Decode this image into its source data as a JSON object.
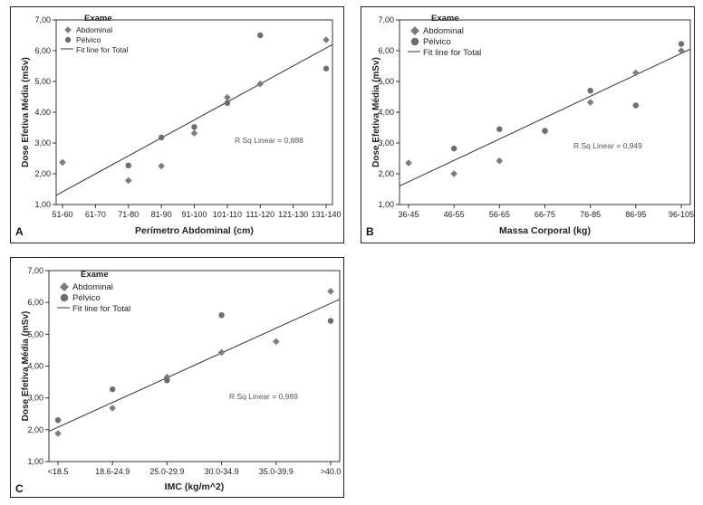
{
  "panels": [
    {
      "letter": "A",
      "legend_title": "Exame",
      "legend": {
        "abdominal": "Abdominal",
        "pelvico": "Pélvico",
        "fit": "Fit line for Total"
      },
      "r2_text": "R Sq Linear = 0,888",
      "chart_data": {
        "type": "scatter",
        "xlabel": "Perímetro Abdominal (cm)",
        "ylabel": "Dose Efetiva Média (mSv)",
        "categories": [
          "51-60",
          "61-70",
          "71-80",
          "81-90",
          "91-100",
          "101-110",
          "111-120",
          "121-130",
          "131-140"
        ],
        "yticks": [
          "1,00",
          "2,00",
          "3,00",
          "4,00",
          "5,00",
          "6,00",
          "7,00"
        ],
        "ylim": [
          1,
          7
        ],
        "series": [
          {
            "name": "Abdominal",
            "marker": "diamond",
            "points": [
              {
                "x": "51-60",
                "y": 2.37
              },
              {
                "x": "71-80",
                "y": 1.78
              },
              {
                "x": "81-90",
                "y": 2.25
              },
              {
                "x": "91-100",
                "y": 3.32
              },
              {
                "x": "101-110",
                "y": 4.48
              },
              {
                "x": "111-120",
                "y": 4.92
              },
              {
                "x": "131-140",
                "y": 6.35
              }
            ]
          },
          {
            "name": "Pélvico",
            "marker": "circle",
            "points": [
              {
                "x": "71-80",
                "y": 2.27
              },
              {
                "x": "81-90",
                "y": 3.18
              },
              {
                "x": "91-100",
                "y": 3.52
              },
              {
                "x": "101-110",
                "y": 4.3
              },
              {
                "x": "111-120",
                "y": 6.5
              },
              {
                "x": "131-140",
                "y": 5.42
              }
            ]
          }
        ],
        "fit_line": {
          "y_start": 1.3,
          "y_end": 6.2
        },
        "r_squared": 0.888
      }
    },
    {
      "letter": "B",
      "legend_title": "Exame",
      "legend": {
        "abdominal": "Abdominal",
        "pelvico": "Pélvico",
        "fit": "Fit line for Total"
      },
      "r2_text": "R Sq Linear = 0,949",
      "chart_data": {
        "type": "scatter",
        "xlabel": "Massa Corporal (kg)",
        "ylabel": "Dose Efetiva Média (mSv)",
        "categories": [
          "36-45",
          "46-55",
          "56-65",
          "66-75",
          "76-85",
          "86-95",
          "96-105"
        ],
        "yticks": [
          "1,00",
          "2,00",
          "3,00",
          "4,00",
          "5,00",
          "6,00",
          "7,00"
        ],
        "ylim": [
          1,
          7
        ],
        "series": [
          {
            "name": "Abdominal",
            "marker": "diamond",
            "points": [
              {
                "x": "36-45",
                "y": 2.35
              },
              {
                "x": "46-55",
                "y": 2.0
              },
              {
                "x": "56-65",
                "y": 2.42
              },
              {
                "x": "66-75",
                "y": 3.38
              },
              {
                "x": "76-85",
                "y": 4.32
              },
              {
                "x": "86-95",
                "y": 5.28
              },
              {
                "x": "96-105",
                "y": 6.0
              }
            ]
          },
          {
            "name": "Pélvico",
            "marker": "circle",
            "points": [
              {
                "x": "46-55",
                "y": 2.82
              },
              {
                "x": "56-65",
                "y": 3.45
              },
              {
                "x": "66-75",
                "y": 3.4
              },
              {
                "x": "76-85",
                "y": 4.7
              },
              {
                "x": "86-95",
                "y": 4.22
              },
              {
                "x": "96-105",
                "y": 6.22
              }
            ]
          }
        ],
        "fit_line": {
          "y_start": 1.6,
          "y_end": 6.05
        },
        "r_squared": 0.949
      }
    },
    {
      "letter": "C",
      "legend_title": "Exame",
      "legend": {
        "abdominal": "Abdominal",
        "pelvico": "Pélvico",
        "fit": "Fit line for Total"
      },
      "r2_text": "R Sq Linear = 0,989",
      "chart_data": {
        "type": "scatter",
        "xlabel": "IMC (kg/m^2)",
        "ylabel": "Dose Efetiva Média (mSv)",
        "categories": [
          "<18.5",
          "18.6-24.9",
          "25.0-29.9",
          "30.0-34.9",
          "35.0-39.9",
          ">40.0"
        ],
        "yticks": [
          "1,00",
          "2,00",
          "3,00",
          "4,00",
          "5,00",
          "6,00",
          "7,00"
        ],
        "ylim": [
          1,
          7
        ],
        "series": [
          {
            "name": "Abdominal",
            "marker": "diamond",
            "points": [
              {
                "x": "<18.5",
                "y": 1.88
              },
              {
                "x": "18.6-24.9",
                "y": 2.68
              },
              {
                "x": "25.0-29.9",
                "y": 3.65
              },
              {
                "x": "30.0-34.9",
                "y": 4.43
              },
              {
                "x": "35.0-39.9",
                "y": 4.77
              },
              {
                "x": ">40.0",
                "y": 6.35
              }
            ]
          },
          {
            "name": "Pélvico",
            "marker": "circle",
            "points": [
              {
                "x": "<18.5",
                "y": 2.3
              },
              {
                "x": "18.6-24.9",
                "y": 3.27
              },
              {
                "x": "25.0-29.9",
                "y": 3.55
              },
              {
                "x": "30.0-34.9",
                "y": 5.6
              },
              {
                "x": ">40.0",
                "y": 5.42
              }
            ]
          }
        ],
        "fit_line": {
          "y_start": 1.95,
          "y_end": 6.1
        },
        "r_squared": 0.989
      }
    }
  ]
}
